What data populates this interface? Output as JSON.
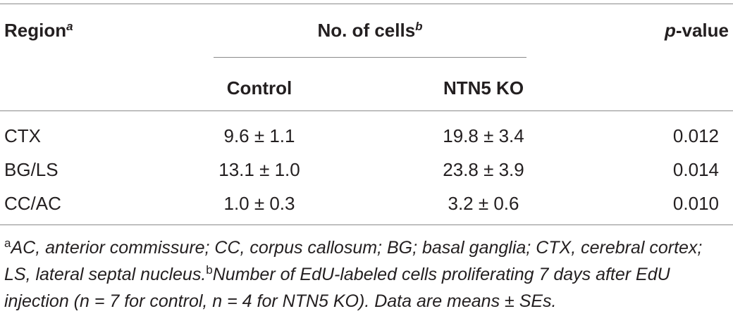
{
  "table": {
    "header": {
      "region": "Region",
      "region_sup": "a",
      "cells": "No. of cells",
      "cells_sup": "b",
      "pvalue_italic": "p",
      "pvalue_rest": "-value",
      "control": "Control",
      "ko": "NTN5 KO"
    },
    "rows": [
      {
        "region": "CTX",
        "control": "9.6 ± 1.1",
        "ko": "19.8 ± 3.4",
        "p": "0.012"
      },
      {
        "region": "BG/LS",
        "control": "13.1 ± 1.0",
        "ko": "23.8 ± 3.9",
        "p": "0.014"
      },
      {
        "region": "CC/AC",
        "control": "1.0 ± 0.3",
        "ko": "3.2 ± 0.6",
        "p": "0.010"
      }
    ]
  },
  "footnotes": {
    "a_marker": "a",
    "a_text": "AC, anterior commissure; CC, corpus callosum; BG; basal ganglia; CTX, cerebral cortex; LS, lateral septal nucleus.",
    "b_marker": "b",
    "b_text": "Number of EdU-labeled cells proliferating 7 days after EdU injection (n = 7 for control, n = 4 for NTN5 KO). Data are means ± SEs."
  }
}
